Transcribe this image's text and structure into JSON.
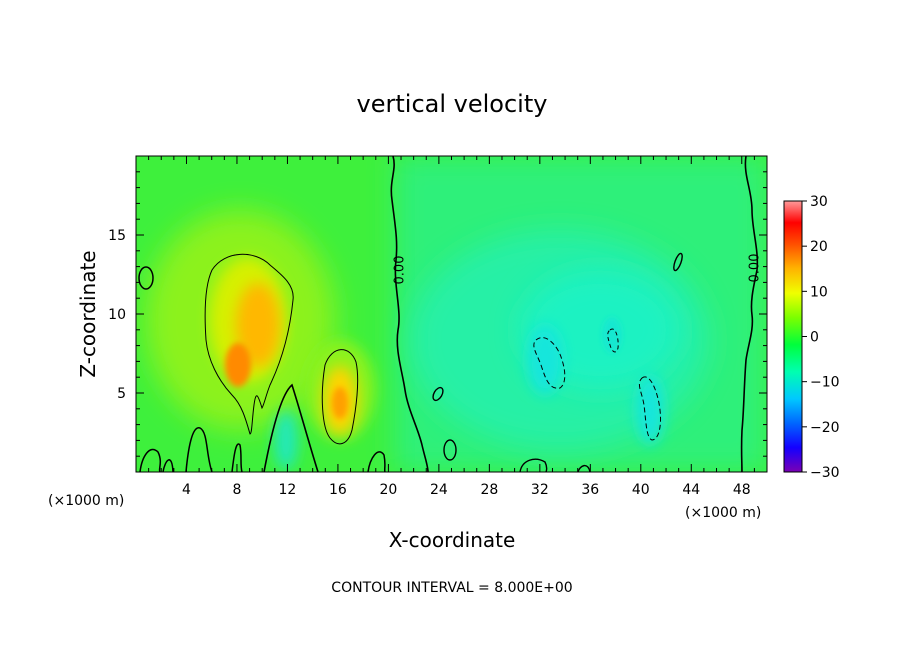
{
  "chart_data": {
    "type": "heatmap",
    "title": "vertical velocity",
    "xlabel": "X-coordinate",
    "ylabel": "Z-coordinate",
    "x_unit_left": "(×1000 m)",
    "x_unit_right": "(×1000 m)",
    "xlim": [
      0,
      50
    ],
    "ylim": [
      0,
      20
    ],
    "x_ticks": [
      4,
      8,
      12,
      16,
      20,
      24,
      28,
      32,
      36,
      40,
      44,
      48
    ],
    "x_tick_labels": [
      "4",
      "8",
      "12",
      "16",
      "20",
      "24",
      "28",
      "32",
      "36",
      "40",
      "44",
      "48"
    ],
    "y_ticks": [
      5,
      10,
      15
    ],
    "y_tick_labels": [
      "5",
      "10",
      "15"
    ],
    "colorbar": {
      "min": -30,
      "max": 30,
      "ticks": [
        30,
        20,
        10,
        0,
        -10,
        -20,
        -30
      ],
      "tick_labels": [
        "30",
        "20",
        "10",
        "0",
        "−10",
        "−20",
        "−30"
      ],
      "colors": [
        "#7a00b4",
        "#1400ff",
        "#0066ff",
        "#00c8ff",
        "#00ffb0",
        "#00ff3c",
        "#7cff00",
        "#f0ff00",
        "#ffb400",
        "#ff5000",
        "#ff0000",
        "#ff9a9a"
      ]
    },
    "contour_interval": 8.0,
    "contour_label": "0.00",
    "annotation": "CONTOUR INTERVAL = 8.000E+00",
    "updraft_cores": [
      {
        "x": 9.2,
        "z": 9.8,
        "value": 16
      },
      {
        "x": 8.0,
        "z": 6.5,
        "value": 14
      },
      {
        "x": 16.2,
        "z": 4.5,
        "value": 12
      }
    ],
    "downdraft_cores": [
      {
        "x": 33.0,
        "z": 7.0,
        "value": -8
      },
      {
        "x": 40.5,
        "z": 4.3,
        "value": -8
      },
      {
        "x": 37.8,
        "z": 8.5,
        "value": -8
      }
    ]
  }
}
